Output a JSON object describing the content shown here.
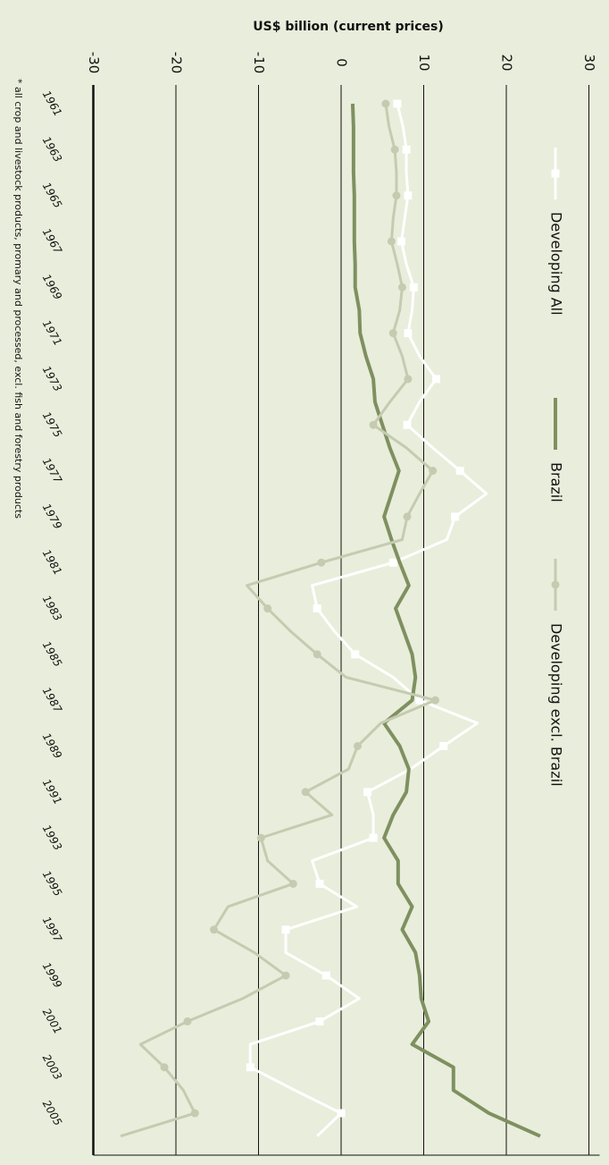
{
  "chart_data": {
    "type": "line",
    "title": "US$ billion (current prices)",
    "footnote": "* all crop and livestock products, promary and processed, excl. fish and forestry products",
    "categories": [
      "1961",
      null,
      "1963",
      null,
      "1965",
      null,
      "1967",
      null,
      "1969",
      null,
      "1971",
      null,
      "1973",
      null,
      "1975",
      null,
      "1977",
      null,
      "1979",
      null,
      "1981",
      null,
      "1983",
      null,
      "1985",
      null,
      "1987",
      null,
      "1989",
      null,
      "1991",
      null,
      "1993",
      null,
      "1995",
      null,
      "1997",
      null,
      "1999",
      null,
      "2001",
      null,
      "2003",
      null,
      "2005",
      null
    ],
    "series": [
      {
        "name": "Developing All",
        "color": "#ffffff",
        "markers": true,
        "values": [
          6.8,
          7.5,
          7.9,
          7.9,
          8.1,
          7.7,
          7.3,
          7.9,
          8.8,
          8.6,
          8.1,
          9.5,
          11.5,
          9.5,
          8.0,
          11.1,
          14.4,
          17.6,
          13.8,
          12.8,
          6.3,
          -3.5,
          -2.9,
          -0.8,
          1.7,
          6.3,
          9.5,
          16.5,
          12.4,
          8.4,
          3.2,
          3.9,
          3.9,
          -3.5,
          -2.6,
          1.9,
          -6.7,
          -6.7,
          -1.8,
          2.2,
          -2.6,
          -11.0,
          -11.0,
          -5.6,
          0.0,
          -2.9
        ]
      },
      {
        "name": "Brazil",
        "color": "#7f9060",
        "markers": false,
        "values": [
          1.4,
          1.5,
          1.5,
          1.5,
          1.6,
          1.6,
          1.6,
          1.7,
          1.7,
          2.2,
          2.3,
          3.0,
          3.9,
          4.1,
          5.0,
          5.9,
          7.0,
          6.1,
          5.2,
          6.1,
          7.1,
          8.2,
          6.6,
          7.6,
          8.6,
          9.0,
          8.6,
          5.2,
          7.1,
          8.2,
          7.9,
          6.3,
          5.2,
          6.9,
          6.9,
          8.6,
          7.4,
          9.0,
          9.5,
          9.7,
          10.6,
          8.6,
          13.6,
          13.6,
          17.9,
          24.1
        ]
      },
      {
        "name": "Developing excl. Brazil",
        "color": "#c5cbb0",
        "markers": true,
        "values": [
          5.4,
          5.8,
          6.5,
          6.7,
          6.7,
          6.3,
          6.1,
          6.8,
          7.4,
          7.1,
          6.3,
          7.4,
          8.1,
          5.9,
          3.9,
          7.9,
          11.1,
          9.5,
          8.0,
          7.4,
          -2.4,
          -11.4,
          -8.9,
          -6.1,
          -2.9,
          0.6,
          11.4,
          4.8,
          2.0,
          0.9,
          -4.3,
          -1.1,
          -9.7,
          -8.9,
          -5.8,
          -13.7,
          -15.4,
          -10.5,
          -6.7,
          -11.9,
          -18.6,
          -24.3,
          -21.4,
          -19.1,
          -17.7,
          -26.7
        ]
      }
    ],
    "ylim": [
      -30,
      30
    ],
    "yticks": [
      -30,
      -20,
      -10,
      0,
      10,
      20,
      30
    ],
    "grid": true
  }
}
